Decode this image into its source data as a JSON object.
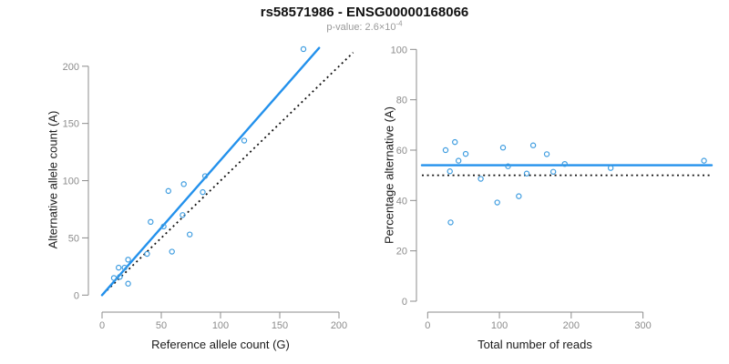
{
  "header": {
    "title": "rs58571986 - ENSG00000168066",
    "subtitle_prefix": "p-value: 2.6×10",
    "subtitle_exponent": "-4"
  },
  "colors": {
    "line_blue": "#2391ec",
    "point_blue": "#3f9de0",
    "axis_gray": "#8c8c8c",
    "dotted_black": "#111111",
    "axis_title_color": "#1a1a1a"
  },
  "chart_data": [
    {
      "type": "scatter",
      "name": "reference-vs-alternative-counts",
      "xlabel": "Reference allele count (G)",
      "ylabel": "Alternative allele count (A)",
      "x_ticks": [
        0,
        50,
        100,
        150,
        200
      ],
      "y_ticks": [
        0,
        50,
        100,
        150,
        200
      ],
      "xlim": [
        0,
        213
      ],
      "ylim": [
        0,
        216
      ],
      "grid": false,
      "x": [
        170,
        120,
        87,
        85,
        69,
        56,
        68,
        74,
        52,
        41,
        59,
        38,
        22,
        19,
        14,
        15,
        10,
        22
      ],
      "y": [
        215,
        135,
        104,
        90,
        97,
        91,
        70,
        53,
        60,
        64,
        38,
        36,
        31,
        24,
        24,
        16,
        15,
        10
      ],
      "fit_line": {
        "slope": 1.179,
        "intercept": 0,
        "style": "solid-blue"
      },
      "identity_line": {
        "slope": 1,
        "intercept": 0,
        "style": "dotted-black"
      }
    },
    {
      "type": "scatter",
      "name": "total-reads-vs-percentage-alternative",
      "xlabel": "Total number of reads",
      "ylabel": "Percentage alternative (A)",
      "x_ticks": [
        0,
        100,
        200,
        300
      ],
      "y_ticks": [
        0,
        20,
        40,
        60,
        80,
        100
      ],
      "xlim": [
        0,
        395
      ],
      "ylim": [
        0,
        100
      ],
      "grid": false,
      "x": [
        385,
        255,
        191,
        175,
        166,
        147,
        138,
        127,
        112,
        105,
        97,
        74,
        53,
        43,
        38,
        31,
        25,
        32
      ],
      "y": [
        55.8,
        52.9,
        54.5,
        51.4,
        58.4,
        61.9,
        50.7,
        41.7,
        53.6,
        61.0,
        39.2,
        48.6,
        58.5,
        55.8,
        63.2,
        51.6,
        60.0,
        31.3
      ],
      "fit_line_y": 54,
      "identity_line_y": 50
    }
  ]
}
